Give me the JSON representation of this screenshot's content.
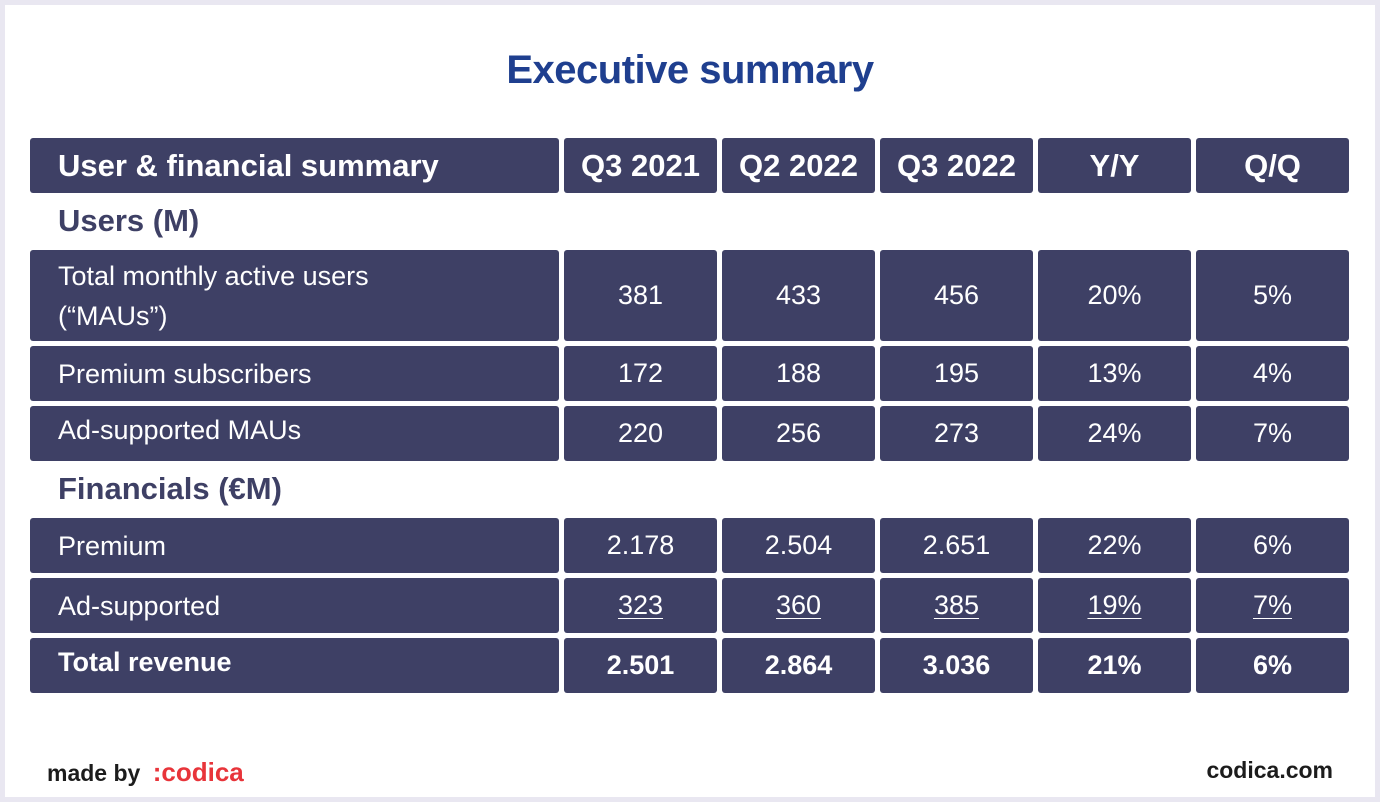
{
  "title": "Executive summary",
  "header": [
    "User & financial summary",
    "Q3 2021",
    "Q2 2022",
    "Q3 2022",
    "Y/Y",
    "Q/Q"
  ],
  "sections": {
    "users": "Users (M)",
    "financials": "Financials (€M)"
  },
  "rows": {
    "mau": {
      "label_line1": "Total monthly active users",
      "label_line2": "(“MAUs”)",
      "values": [
        "381",
        "433",
        "456",
        "20%",
        "5%"
      ]
    },
    "premium_subs": {
      "label": "Premium subscribers",
      "values": [
        "172",
        "188",
        "195",
        "13%",
        "4%"
      ]
    },
    "ad_maus": {
      "label": "Ad-supported MAUs",
      "values": [
        "220",
        "256",
        "273",
        "24%",
        "7%"
      ]
    },
    "premium": {
      "label": "Premium",
      "values": [
        "2.178",
        "2.504",
        "2.651",
        "22%",
        "6%"
      ]
    },
    "ad_supported": {
      "label": "Ad-supported",
      "values": [
        "323",
        "360",
        "385",
        "19%",
        "7%"
      ]
    },
    "total_revenue": {
      "label": "Total revenue",
      "values": [
        "2.501",
        "2.864",
        "3.036",
        "21%",
        "6%"
      ]
    }
  },
  "footer": {
    "made_by": "made by",
    "brand": ":codica",
    "site": "codica.com"
  },
  "colors": {
    "cell_bg": "#3e4065",
    "title": "#1f3f8f",
    "brand": "#e8343a"
  }
}
